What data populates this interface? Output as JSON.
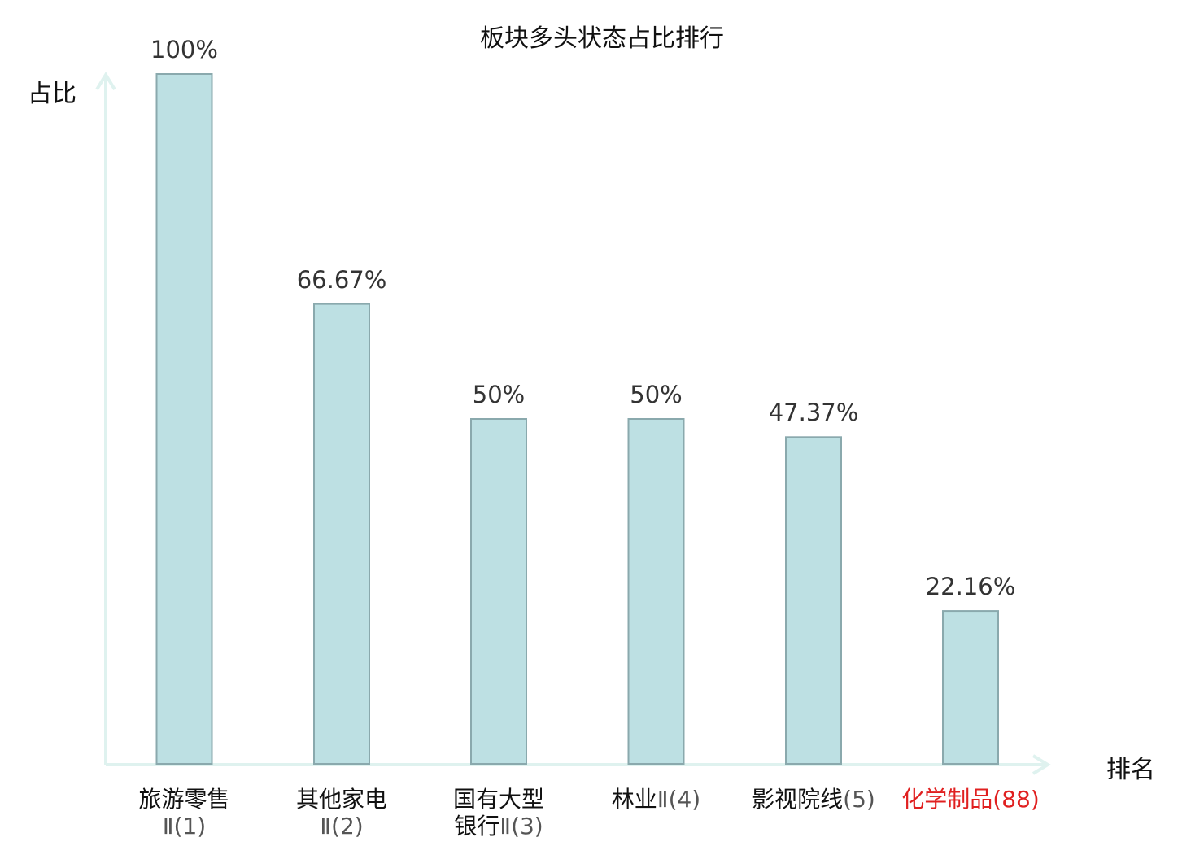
{
  "chart_data": {
    "type": "bar",
    "title": "板块多头状态占比排行",
    "ylabel": "占比",
    "xlabel": "排名",
    "ylim": [
      0,
      100
    ],
    "grid": false,
    "colors": {
      "bar_fill": "#bde0e3",
      "bar_stroke": "#8aa9ad",
      "axis": "#dff2ef",
      "highlight_text": "#e02020"
    },
    "categories": [
      {
        "name": "旅游零售Ⅱ",
        "rank": "(1)",
        "lines": [
          "旅游零售",
          "Ⅱ(1)"
        ],
        "highlight": false
      },
      {
        "name": "其他家电Ⅱ",
        "rank": "(2)",
        "lines": [
          "其他家电",
          "Ⅱ(2)"
        ],
        "highlight": false
      },
      {
        "name": "国有大型银行Ⅱ",
        "rank": "(3)",
        "lines": [
          "国有大型",
          "银行Ⅱ(3)"
        ],
        "highlight": false
      },
      {
        "name": "林业Ⅱ",
        "rank": "(4)",
        "lines": [
          "林业Ⅱ(4)"
        ],
        "highlight": false
      },
      {
        "name": "影视院线",
        "rank": "(5)",
        "lines": [
          "影视院线(5)"
        ],
        "highlight": false
      },
      {
        "name": "化学制品",
        "rank": "(88)",
        "lines": [
          "化学制品(88)"
        ],
        "highlight": true
      }
    ],
    "values": [
      100,
      66.67,
      50,
      50,
      47.37,
      22.16
    ],
    "value_labels": [
      "100%",
      "66.67%",
      "50%",
      "50%",
      "47.37%",
      "22.16%"
    ]
  }
}
